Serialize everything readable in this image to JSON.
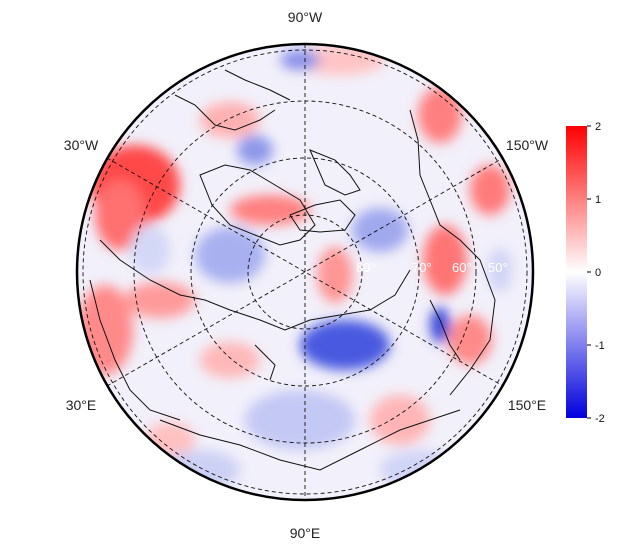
{
  "map": {
    "projection": "north-polar-stereographic",
    "longitude_labels": [
      {
        "text": "90°W",
        "lon": -90
      },
      {
        "text": "150°W",
        "lon": -150
      },
      {
        "text": "150°E",
        "lon": 150
      },
      {
        "text": "90°E",
        "lon": 90
      },
      {
        "text": "30°E",
        "lon": 30
      },
      {
        "text": "30°W",
        "lon": -30
      }
    ],
    "latitude_rings": [
      80,
      70,
      60,
      50
    ],
    "ring_labels": [
      "80°",
      "70°",
      "60°",
      "50°"
    ],
    "colorbar": {
      "ticks": [
        "2",
        "1",
        "0",
        "-1",
        "-2"
      ],
      "min": -2,
      "max": 2,
      "colors": [
        "#0000dd",
        "#ffffff",
        "#ff0000"
      ]
    }
  }
}
